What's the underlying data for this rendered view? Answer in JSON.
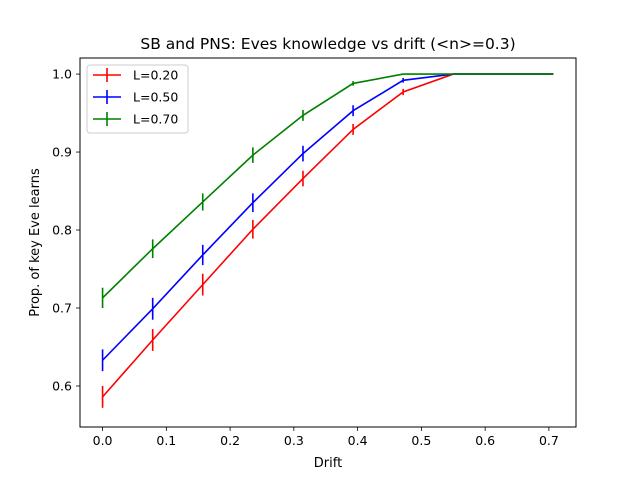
{
  "chart_data": {
    "type": "line",
    "title": "SB and PNS: Eves knowledge vs drift (<n>=0.3)",
    "xlabel": "Drift",
    "ylabel": "Prop. of key Eve learns",
    "xlim": [
      -0.0354,
      0.7425
    ],
    "ylim": [
      0.5474,
      1.0206
    ],
    "xticks": [
      0.0,
      0.1,
      0.2,
      0.3,
      0.4,
      0.5,
      0.6,
      0.7
    ],
    "xtick_labels": [
      "0.0",
      "0.1",
      "0.2",
      "0.3",
      "0.4",
      "0.5",
      "0.6",
      "0.7"
    ],
    "yticks": [
      0.6,
      0.7,
      0.8,
      0.9,
      1.0
    ],
    "ytick_labels": [
      "0.6",
      "0.7",
      "0.8",
      "0.9",
      "1.0"
    ],
    "grid": false,
    "legend_position": "upper-left",
    "x": [
      0.0,
      0.0786,
      0.1571,
      0.2357,
      0.3143,
      0.3929,
      0.4714,
      0.55,
      0.6286,
      0.7071
    ],
    "series": [
      {
        "name": "L=0.20",
        "color": "#ff0000",
        "values": [
          0.586,
          0.659,
          0.73,
          0.801,
          0.866,
          0.929,
          0.977,
          1.0,
          1.0,
          1.0
        ],
        "errors": [
          0.014,
          0.014,
          0.014,
          0.012,
          0.01,
          0.007,
          0.004,
          0.0,
          0.0,
          0.0
        ]
      },
      {
        "name": "L=0.50",
        "color": "#0000ff",
        "values": [
          0.633,
          0.699,
          0.768,
          0.835,
          0.898,
          0.953,
          0.992,
          1.0,
          1.0,
          1.0
        ],
        "errors": [
          0.014,
          0.014,
          0.013,
          0.012,
          0.01,
          0.007,
          0.003,
          0.0,
          0.0,
          0.0
        ]
      },
      {
        "name": "L=0.70",
        "color": "#008000",
        "values": [
          0.713,
          0.776,
          0.836,
          0.896,
          0.947,
          0.988,
          1.0,
          1.0,
          1.0,
          1.0
        ],
        "errors": [
          0.013,
          0.012,
          0.011,
          0.01,
          0.007,
          0.003,
          0.0,
          0.0,
          0.0,
          0.0
        ]
      }
    ]
  }
}
